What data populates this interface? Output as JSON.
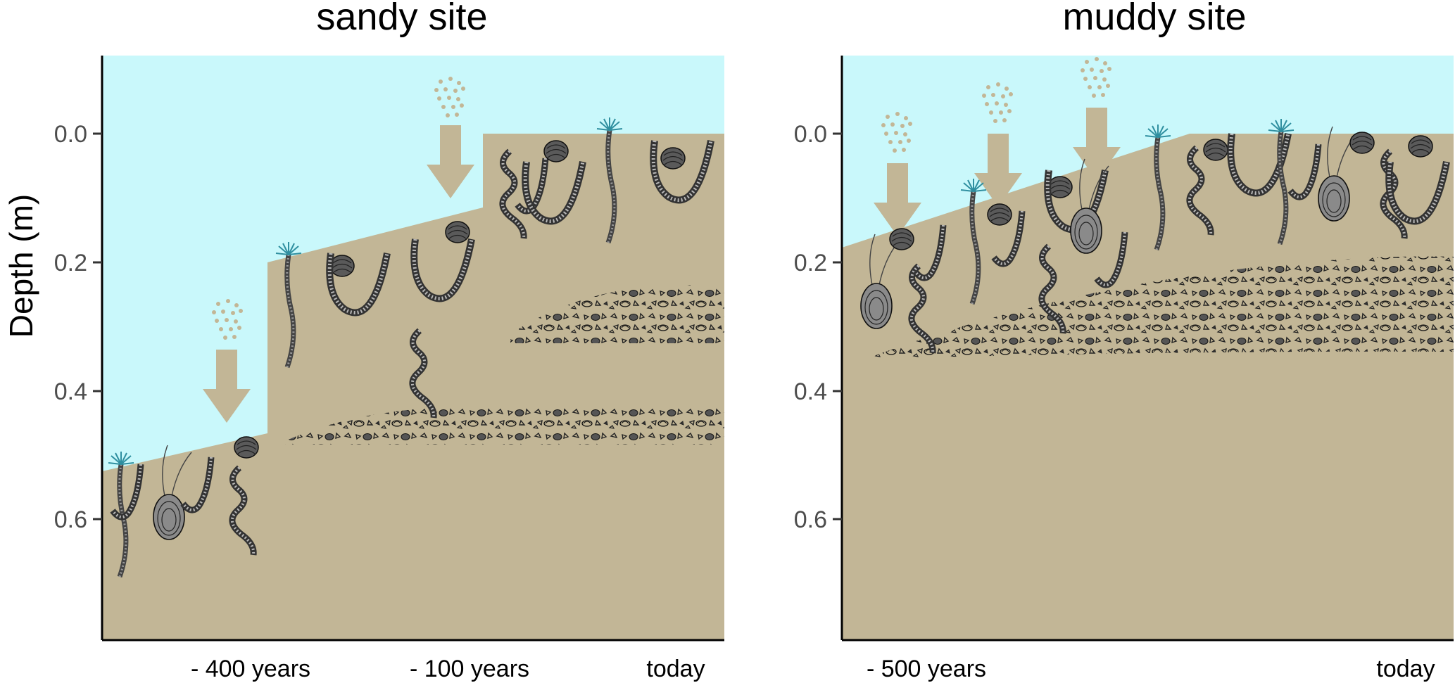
{
  "colors": {
    "water": "#c9f8fb",
    "sediment": "#c2b696",
    "arrow": "#c2b696",
    "organism": "#3a3a3a",
    "shell_layer": "#222222"
  },
  "y_axis": {
    "label": "Depth (m)",
    "ticks": [
      "0.0",
      "0.2",
      "0.4",
      "0.6"
    ]
  },
  "panels": [
    {
      "id": "sandy",
      "title": "sandy site",
      "time_labels": [
        "- 400 years",
        "- 100 years",
        "today"
      ],
      "icons": [
        "sediment-particles-icon",
        "deposition-arrow-icon",
        "polychaete-worm-icon",
        "bivalve-shell-icon",
        "tube-worm-icon",
        "shell-hash-layer"
      ]
    },
    {
      "id": "muddy",
      "title": "muddy site",
      "time_labels": [
        "- 500 years",
        "today"
      ],
      "icons": [
        "sediment-particles-icon",
        "deposition-arrow-icon",
        "polychaete-worm-icon",
        "bivalve-shell-icon",
        "tube-worm-icon",
        "shell-hash-layer"
      ]
    }
  ]
}
